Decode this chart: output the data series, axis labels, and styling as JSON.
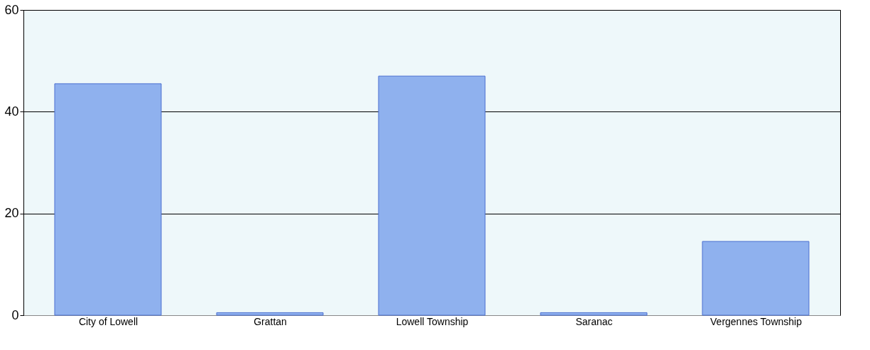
{
  "chart_data": {
    "type": "bar",
    "categories": [
      "City of Lowell",
      "Grattan",
      "Lowell Township",
      "Saranac",
      "Vergennes Township"
    ],
    "values": [
      45.5,
      0.5,
      47,
      0.5,
      14.5
    ],
    "color": "#8fb1ee",
    "ylim": [
      0,
      60
    ],
    "yticks": [
      0,
      20,
      40,
      60
    ],
    "grid": "y"
  }
}
